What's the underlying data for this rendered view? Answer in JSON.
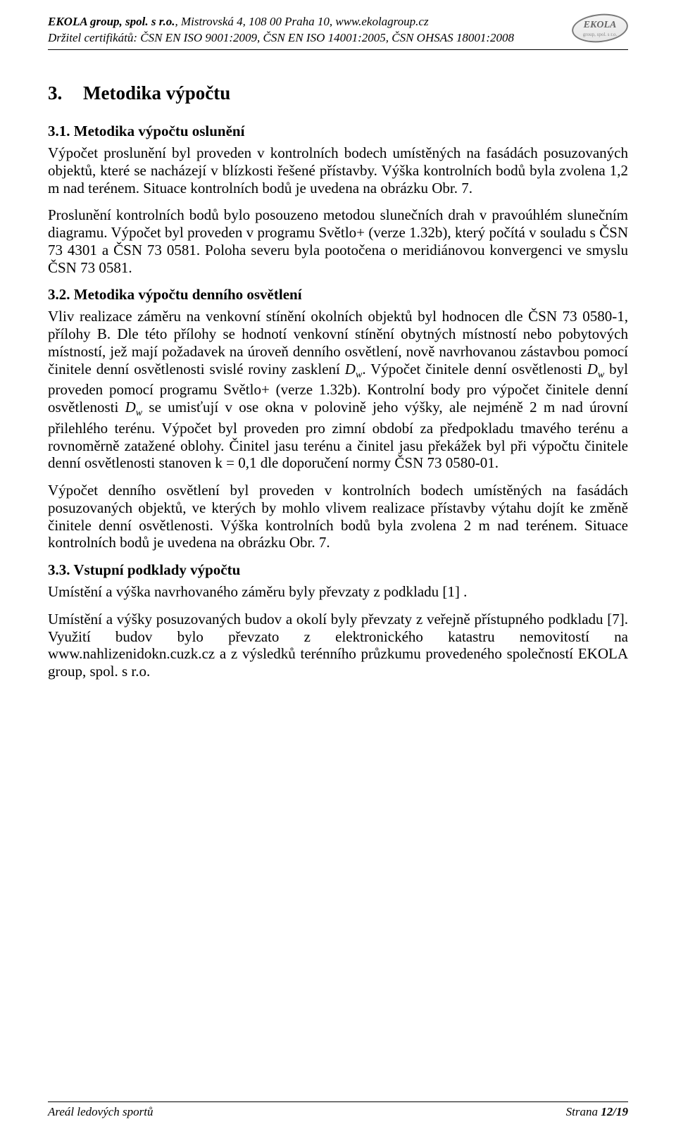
{
  "header": {
    "company": "EKOLA group, spol. s r.o.",
    "address": ", Mistrovská 4, 108 00 Praha 10, www.ekolagroup.cz",
    "cert_line": "Držitel certifikátů: ČSN EN ISO 9001:2009, ČSN EN ISO 14001:2005, ČSN OHSAS 18001:2008",
    "logo_text": "EKOLA",
    "logo_sub": "group, spol. s r.o."
  },
  "section": {
    "num": "3.",
    "title": "Metodika výpočtu"
  },
  "s31": {
    "heading": "3.1. Metodika výpočtu oslunění",
    "p1": "Výpočet proslunění byl proveden v kontrolních bodech umístěných na fasádách posuzovaných objektů, které se nacházejí v blízkosti řešené přístavby. Výška kontrolních bodů byla zvolena 1,2 m nad terénem. Situace kontrolních bodů je uvedena na obrázku Obr. 7.",
    "p2": "Proslunění kontrolních bodů bylo posouzeno metodou slunečních drah v pravoúhlém slunečním diagramu. Výpočet byl proveden v programu Světlo+ (verze 1.32b), který počítá v souladu s ČSN 73 4301 a ČSN 73 0581. Poloha severu byla pootočena o meridiánovou konvergenci ve smyslu ČSN 73 0581."
  },
  "s32": {
    "heading": "3.2. Metodika výpočtu denního osvětlení",
    "p1a": "Vliv realizace záměru na venkovní stínění okolních objektů byl hodnocen dle ČSN 73 0580-1, přílohy B. Dle této přílohy se hodnotí venkovní stínění obytných místností nebo pobytových místností, jež mají požadavek na úroveň denního osvětlení, nově navrhovanou zástavbou pomocí činitele denní osvětlenosti svislé roviny zasklení ",
    "p1b": ". Výpočet činitele denní osvětlenosti ",
    "p1c": " byl proveden pomocí programu Světlo+ (verze 1.32b). Kontrolní body pro výpočet činitele denní osvětlenosti ",
    "p1d": " se umisťují v ose okna v polovině jeho výšky, ale nejméně 2 m nad úrovní přilehlého terénu. Výpočet byl proveden pro zimní období za předpokladu tmavého terénu a rovnoměrně zatažené oblohy. Činitel jasu terénu a činitel jasu překážek byl při výpočtu činitele denní osvětlenosti stanoven k = 0,1 dle doporučení normy ČSN 73 0580-01.",
    "dw": "D",
    "dw_sub": "w",
    "p2": "Výpočet denního osvětlení byl proveden v kontrolních bodech umístěných na fasádách posuzovaných objektů, ve kterých by mohlo vlivem realizace přístavby výtahu dojít ke změně činitele denní osvětlenosti. Výška kontrolních bodů byla zvolena 2 m nad terénem. Situace kontrolních bodů je uvedena na obrázku Obr. 7."
  },
  "s33": {
    "heading": "3.3. Vstupní podklady výpočtu",
    "p1": "Umístění a výška navrhovaného záměru byly převzaty z podkladu [1] .",
    "p2": "Umístění a výšky posuzovaných budov a okolí byly převzaty z veřejně přístupného podkladu [7]. Využití budov bylo převzato z elektronického katastru nemovitostí na www.nahlizenidokn.cuzk.cz a z výsledků terénního průzkumu provedeného společností EKOLA group, spol. s r.o."
  },
  "footer": {
    "left": "Areál ledových sportů",
    "right_label": "Strana ",
    "right_value": "12/19"
  }
}
